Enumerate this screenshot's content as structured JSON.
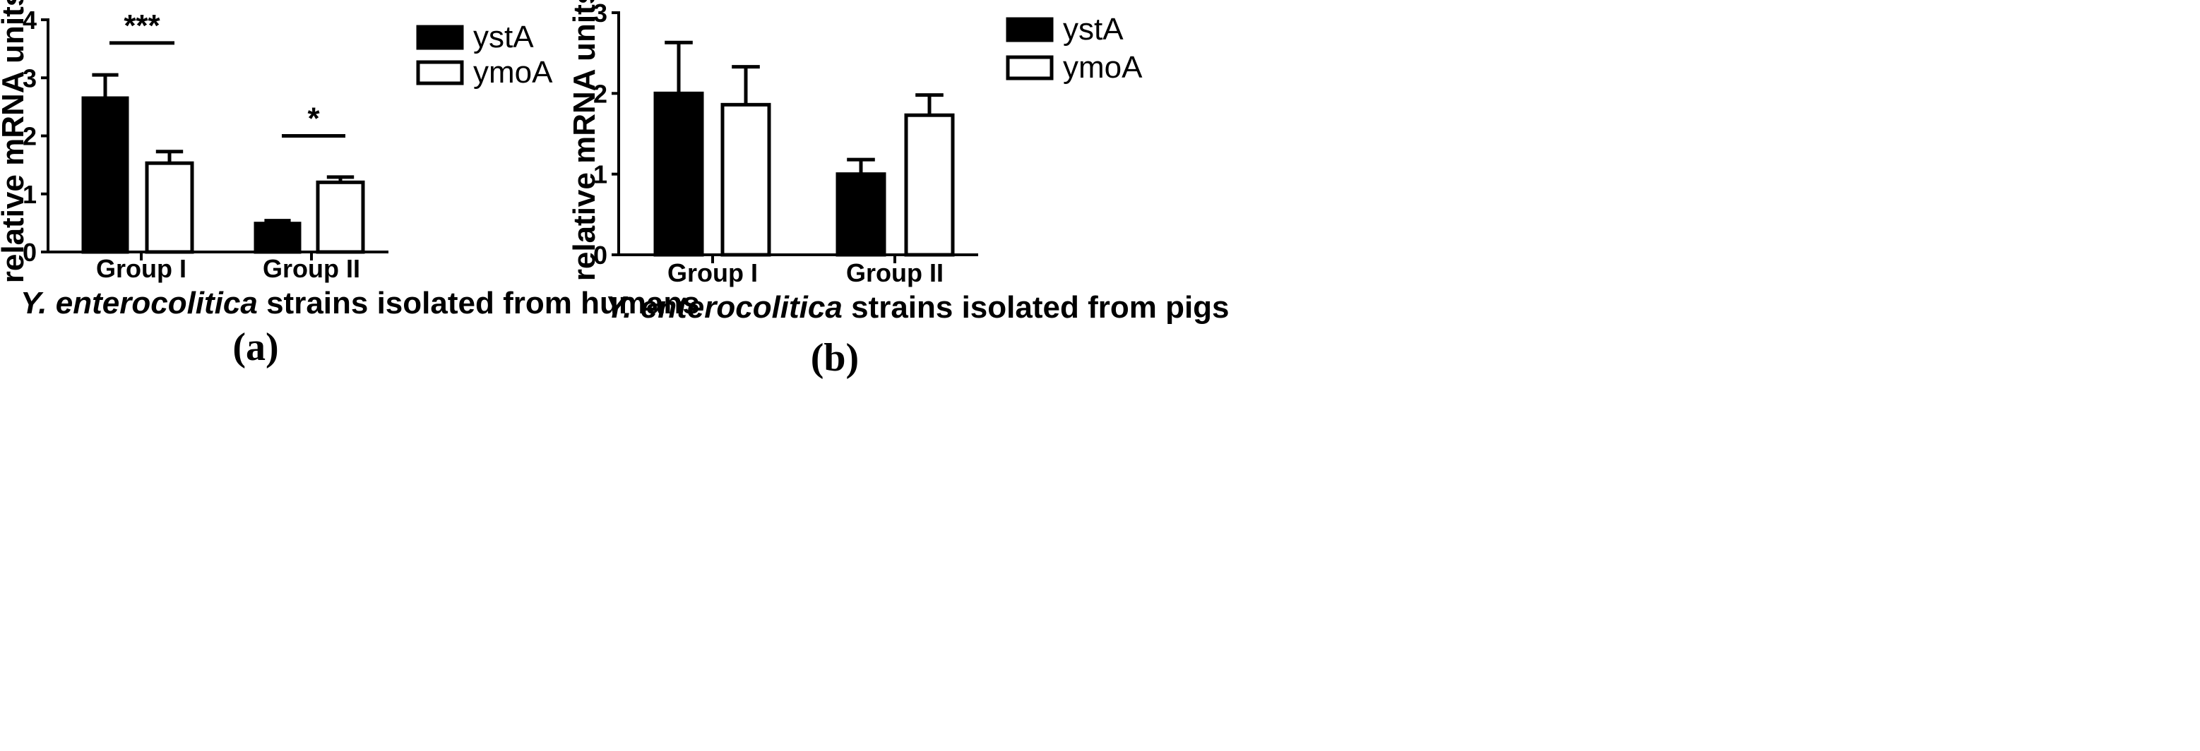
{
  "chart_data": [
    {
      "type": "bar",
      "panel_label": "(a)",
      "title": "",
      "xlabel_italic": "Y. enterocolitica",
      "xlabel_rest": " strains isolated from humans",
      "ylabel": "relative mRNA units",
      "ylim": [
        0,
        4
      ],
      "yticks": [
        0,
        1,
        2,
        3,
        4
      ],
      "categories": [
        "Group I",
        "Group II"
      ],
      "series": [
        {
          "name": "ystA",
          "fill": "#000000",
          "values": [
            2.65,
            0.49
          ],
          "errors": [
            0.4,
            0.05
          ]
        },
        {
          "name": "ymoA",
          "fill": "#ffffff",
          "values": [
            1.53,
            1.2
          ],
          "errors": [
            0.2,
            0.09
          ]
        }
      ],
      "significance": [
        {
          "category": "Group I",
          "label": "***",
          "y": 3.6
        },
        {
          "category": "Group II",
          "label": "*",
          "y": 2.0
        }
      ]
    },
    {
      "type": "bar",
      "panel_label": "(b)",
      "title": "",
      "xlabel_italic": "Y. enterocolitica",
      "xlabel_rest": " strains isolated from pigs",
      "ylabel": "relative mRNA units",
      "ylim": [
        0,
        3
      ],
      "yticks": [
        0,
        1,
        2,
        3
      ],
      "categories": [
        "Group I",
        "Group II"
      ],
      "series": [
        {
          "name": "ystA",
          "fill": "#000000",
          "values": [
            2.0,
            1.0
          ],
          "errors": [
            0.63,
            0.18
          ]
        },
        {
          "name": "ymoA",
          "fill": "#ffffff",
          "values": [
            1.86,
            1.73
          ],
          "errors": [
            0.47,
            0.25
          ]
        }
      ],
      "significance": []
    }
  ]
}
